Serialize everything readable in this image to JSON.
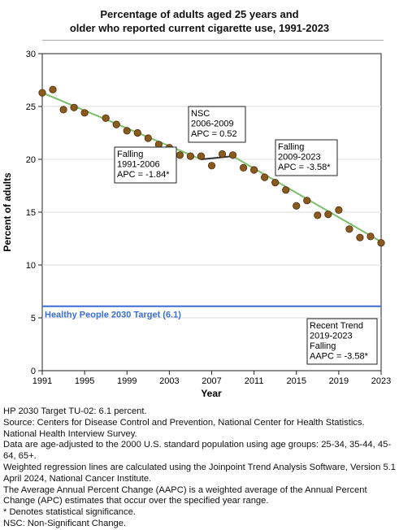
{
  "title_line1": "Percentage of adults aged 25 years and",
  "title_line2": "older who reported current cigarette use, 1991-2023",
  "chart_data": {
    "type": "scatter",
    "xlabel": "Year",
    "ylabel": "Percent of adults",
    "xlim": [
      1991,
      2023
    ],
    "ylim": [
      0,
      30
    ],
    "xticks": [
      1991,
      1995,
      1999,
      2003,
      2007,
      2011,
      2015,
      2019,
      2023
    ],
    "yticks": [
      0,
      5,
      10,
      15,
      20,
      25,
      30
    ],
    "points": [
      {
        "x": 1991,
        "y": 26.3
      },
      {
        "x": 1992,
        "y": 26.6
      },
      {
        "x": 1993,
        "y": 24.7
      },
      {
        "x": 1994,
        "y": 24.9
      },
      {
        "x": 1995,
        "y": 24.4
      },
      {
        "x": 1997,
        "y": 23.9
      },
      {
        "x": 1998,
        "y": 23.3
      },
      {
        "x": 1999,
        "y": 22.7
      },
      {
        "x": 2000,
        "y": 22.5
      },
      {
        "x": 2001,
        "y": 22.0
      },
      {
        "x": 2002,
        "y": 21.4
      },
      {
        "x": 2003,
        "y": 21.1
      },
      {
        "x": 2004,
        "y": 20.4
      },
      {
        "x": 2005,
        "y": 20.3
      },
      {
        "x": 2006,
        "y": 20.3
      },
      {
        "x": 2007,
        "y": 19.4
      },
      {
        "x": 2008,
        "y": 20.5
      },
      {
        "x": 2009,
        "y": 20.4
      },
      {
        "x": 2010,
        "y": 19.2
      },
      {
        "x": 2011,
        "y": 19.0
      },
      {
        "x": 2012,
        "y": 18.3
      },
      {
        "x": 2013,
        "y": 17.8
      },
      {
        "x": 2014,
        "y": 17.1
      },
      {
        "x": 2015,
        "y": 15.6
      },
      {
        "x": 2016,
        "y": 16.1
      },
      {
        "x": 2017,
        "y": 14.7
      },
      {
        "x": 2018,
        "y": 14.8
      },
      {
        "x": 2019,
        "y": 15.2
      },
      {
        "x": 2020,
        "y": 13.4
      },
      {
        "x": 2021,
        "y": 12.6
      },
      {
        "x": 2022,
        "y": 12.7
      },
      {
        "x": 2023,
        "y": 12.1
      }
    ],
    "trend_segments": [
      {
        "x": [
          1991,
          2006
        ],
        "y": [
          26.3,
          20.0
        ],
        "color": "#7bbf6a"
      },
      {
        "x": [
          2006,
          2009
        ],
        "y": [
          20.0,
          20.3
        ],
        "color": "#333333"
      },
      {
        "x": [
          2009,
          2023
        ],
        "y": [
          20.3,
          12.2
        ],
        "color": "#7bbf6a"
      }
    ],
    "target": {
      "value": 6.1,
      "label": "Healthy People 2030 Target (6.1)",
      "color": "#3a6fd8"
    },
    "marker_color": "#8b5a1e",
    "annotations": [
      {
        "lines": [
          "Falling",
          "1991-2006",
          "APC = -1.84*"
        ]
      },
      {
        "lines": [
          "NSC",
          "2006-2009",
          "APC =  0.52"
        ]
      },
      {
        "lines": [
          "Falling",
          "2009-2023",
          "APC = -3.58*"
        ]
      },
      {
        "lines": [
          "Recent Trend",
          "2019-2023",
          "Falling",
          "AAPC = -3.58*"
        ]
      }
    ]
  },
  "footnotes": [
    "HP 2030 Target TU-02: 6.1 percent.",
    "Source: Centers for Disease Control and Prevention, National Center for Health Statistics. National Health Interview Survey.",
    "Data are age-adjusted to the 2000 U.S. standard population using age groups: 25-34, 35-44, 45-64, 65+.",
    "Weighted regression lines are calculated using the Joinpoint Trend Analysis Software, Version 5.1 April 2024, National Cancer Institute.",
    "The Average Annual Percent Change (AAPC) is a weighted average of the Annual Percent Change (APC) estimates that occur over the specified year range.",
    "* Denotes statistical significance.",
    "NSC: Non-Significant Change."
  ]
}
